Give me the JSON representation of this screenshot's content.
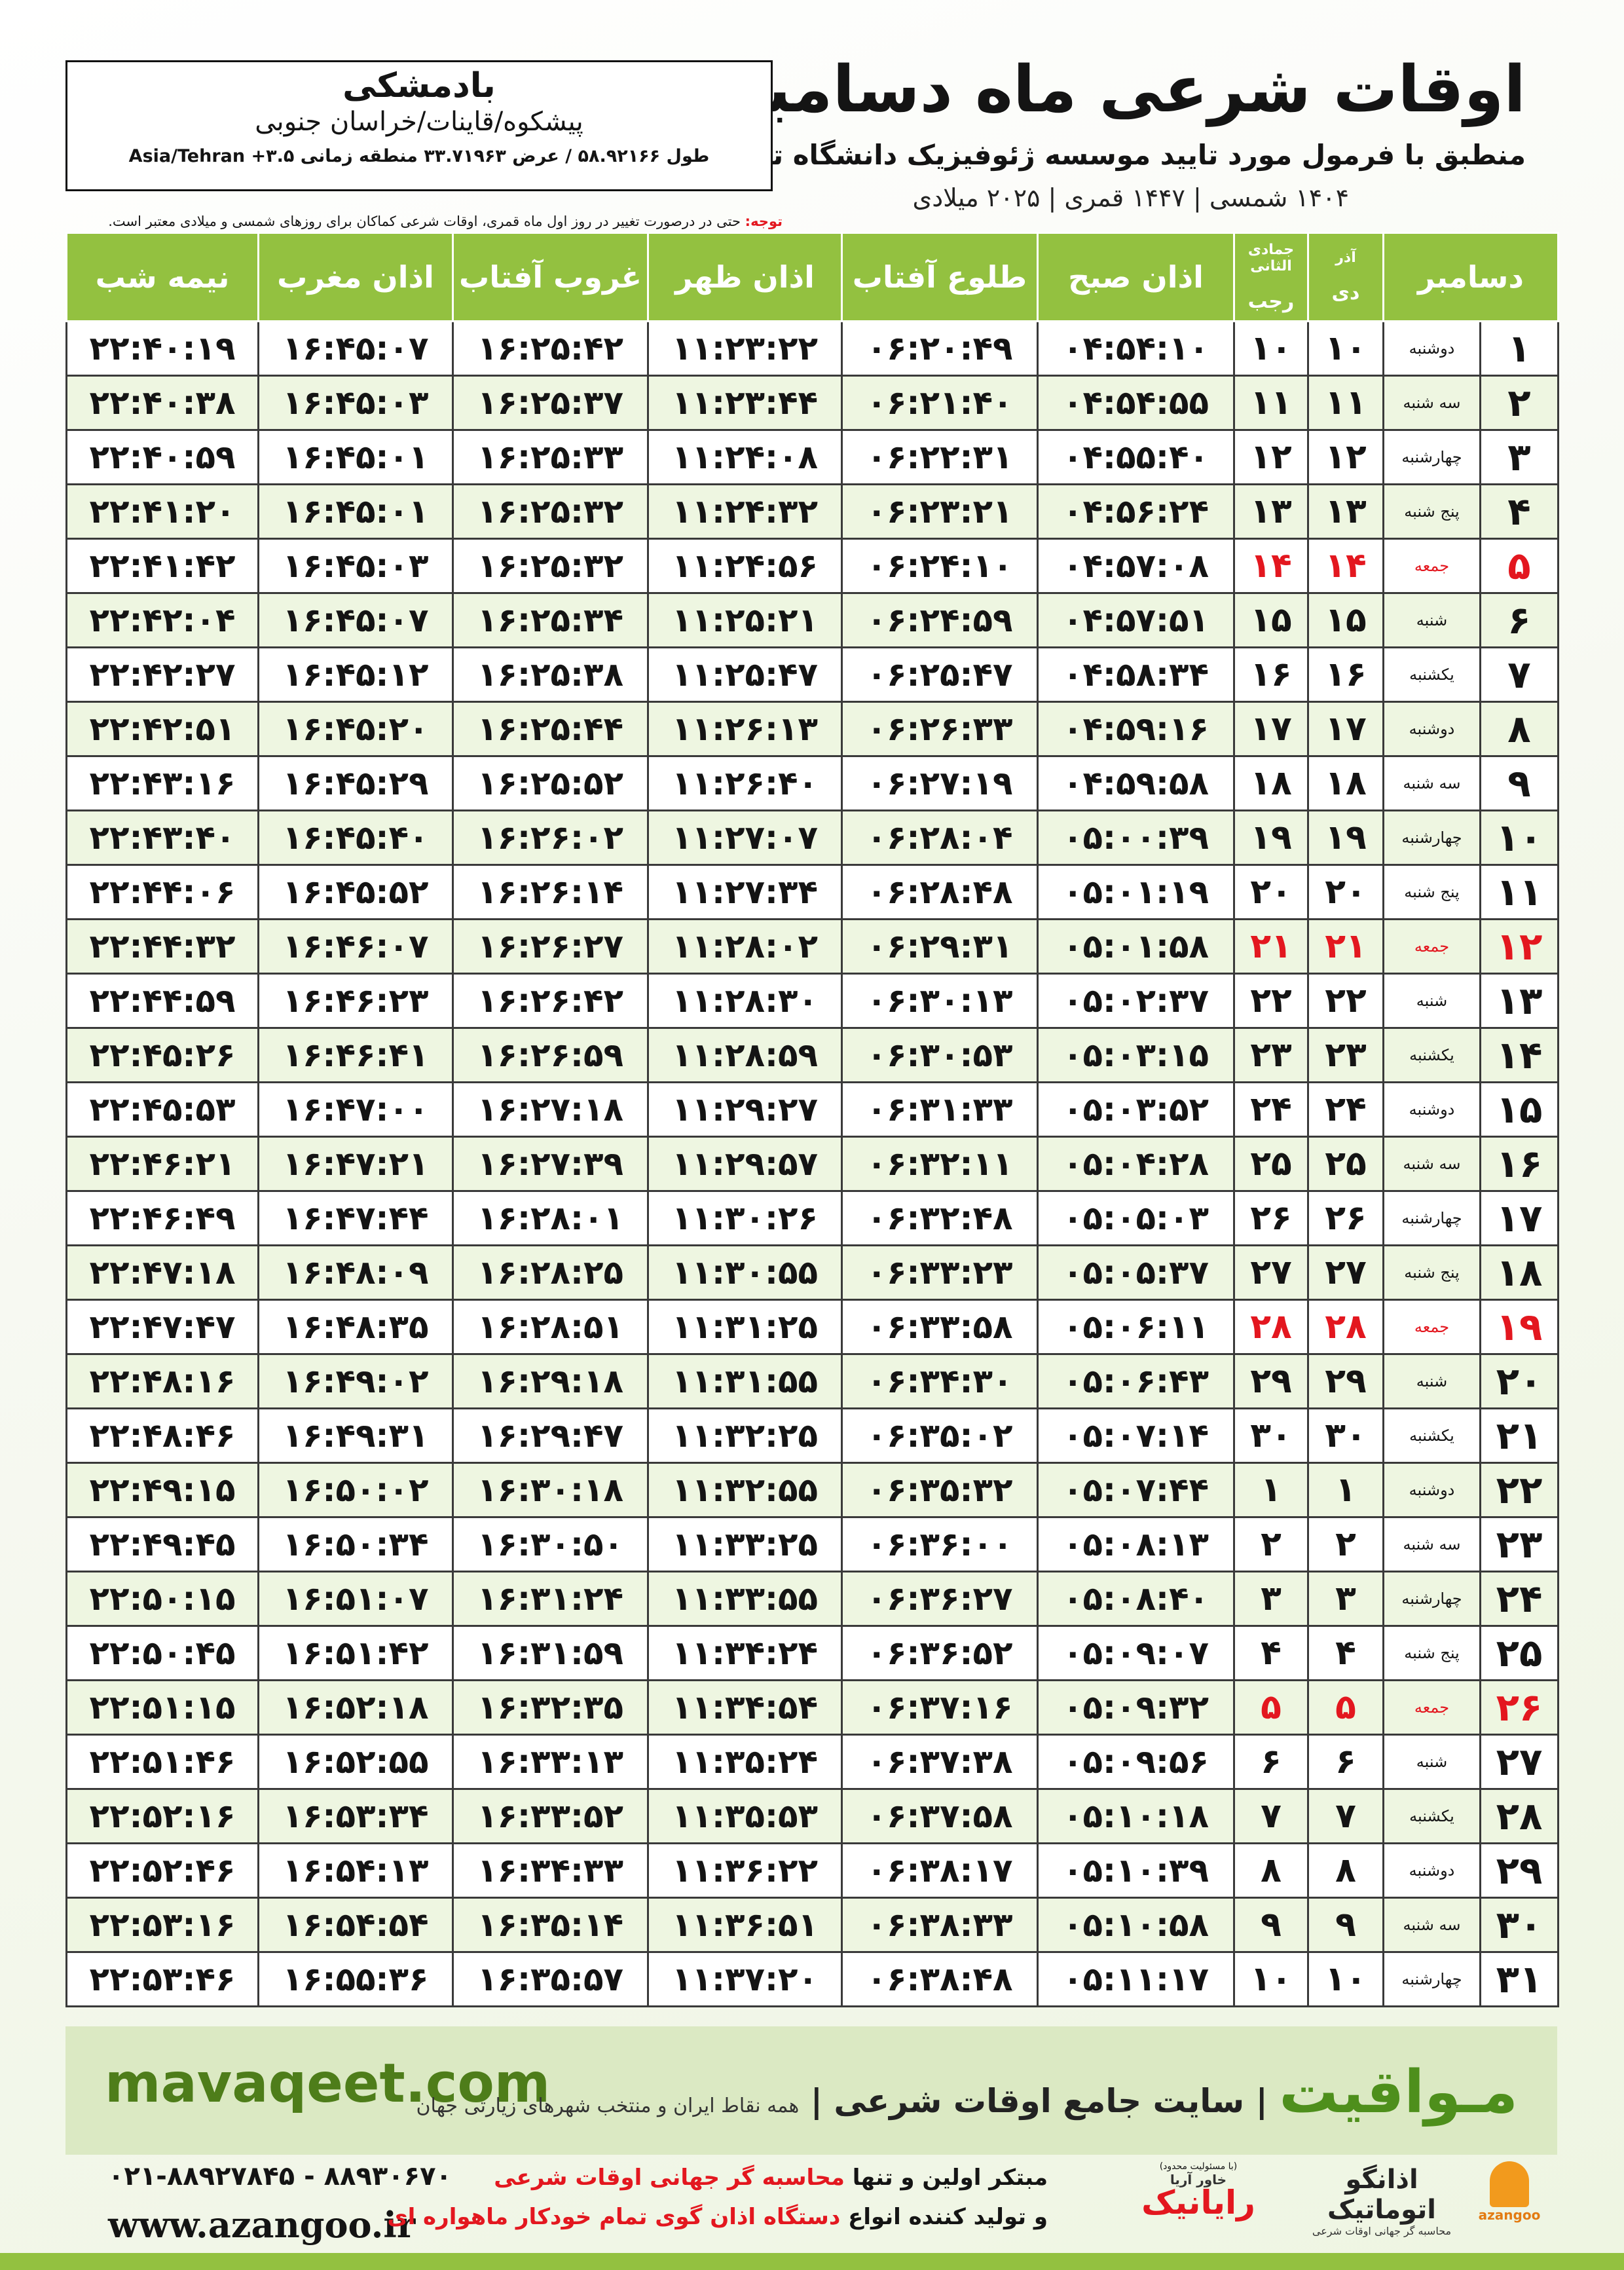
{
  "header": {
    "title": "اوقات شرعی ماه دسامبر",
    "subtitle": "منطبق با فرمول مورد تایید موسسه ژئوفیزیک دانشگاه تهران",
    "date_line": "۱۴۰۴ شمسی | ۱۴۴۷ قمری | ۲۰۲۵ میلادی"
  },
  "location": {
    "name": "بادمشکی",
    "region": "پیشکوه/قاینات/خراسان جنوبی",
    "coords": "طول ۵۸.۹۲۱۶۶ / عرض ۳۳.۷۱۹۶۳ منطقه زمانی ۳.۵+ Asia/Tehran"
  },
  "note": {
    "label": "توجه:",
    "text": "حتی در درصورت تغییر در روز اول ماه قمری، اوقات شرعی کماکان برای روزهای شمسی و میلادی معتبر است."
  },
  "table": {
    "headers": {
      "month": "دسامبر",
      "persian_top": "آذر",
      "persian": "دی",
      "hijri_top": "جمادی الثانی",
      "hijri": "رجب",
      "times": [
        "اذان صبح",
        "طلوع آفتاب",
        "اذان ظهر",
        "غروب آفتاب",
        "اذان مغرب",
        "نیمه شب"
      ]
    },
    "rows": [
      {
        "cells": [
          "۱",
          "دوشنبه",
          "۱۰",
          "۱۰",
          "۰۴:۵۴:۱۰",
          "۰۶:۲۰:۴۹",
          "۱۱:۲۳:۲۲",
          "۱۶:۲۵:۴۲",
          "۱۶:۴۵:۰۷",
          "۲۲:۴۰:۱۹"
        ]
      },
      {
        "cells": [
          "۲",
          "سه شنبه",
          "۱۱",
          "۱۱",
          "۰۴:۵۴:۵۵",
          "۰۶:۲۱:۴۰",
          "۱۱:۲۳:۴۴",
          "۱۶:۲۵:۳۷",
          "۱۶:۴۵:۰۳",
          "۲۲:۴۰:۳۸"
        ]
      },
      {
        "cells": [
          "۳",
          "چهارشنبه",
          "۱۲",
          "۱۲",
          "۰۴:۵۵:۴۰",
          "۰۶:۲۲:۳۱",
          "۱۱:۲۴:۰۸",
          "۱۶:۲۵:۳۳",
          "۱۶:۴۵:۰۱",
          "۲۲:۴۰:۵۹"
        ]
      },
      {
        "cells": [
          "۴",
          "پنج شنبه",
          "۱۳",
          "۱۳",
          "۰۴:۵۶:۲۴",
          "۰۶:۲۳:۲۱",
          "۱۱:۲۴:۳۲",
          "۱۶:۲۵:۳۲",
          "۱۶:۴۵:۰۱",
          "۲۲:۴۱:۲۰"
        ]
      },
      {
        "cells": [
          "۵",
          "جمعه",
          "۱۴",
          "۱۴",
          "۰۴:۵۷:۰۸",
          "۰۶:۲۴:۱۰",
          "۱۱:۲۴:۵۶",
          "۱۶:۲۵:۳۲",
          "۱۶:۴۵:۰۳",
          "۲۲:۴۱:۴۲"
        ],
        "color": "#e3171f"
      },
      {
        "cells": [
          "۶",
          "شنبه",
          "۱۵",
          "۱۵",
          "۰۴:۵۷:۵۱",
          "۰۶:۲۴:۵۹",
          "۱۱:۲۵:۲۱",
          "۱۶:۲۵:۳۴",
          "۱۶:۴۵:۰۷",
          "۲۲:۴۲:۰۴"
        ]
      },
      {
        "cells": [
          "۷",
          "یکشنبه",
          "۱۶",
          "۱۶",
          "۰۴:۵۸:۳۴",
          "۰۶:۲۵:۴۷",
          "۱۱:۲۵:۴۷",
          "۱۶:۲۵:۳۸",
          "۱۶:۴۵:۱۲",
          "۲۲:۴۲:۲۷"
        ]
      },
      {
        "cells": [
          "۸",
          "دوشنبه",
          "۱۷",
          "۱۷",
          "۰۴:۵۹:۱۶",
          "۰۶:۲۶:۳۳",
          "۱۱:۲۶:۱۳",
          "۱۶:۲۵:۴۴",
          "۱۶:۴۵:۲۰",
          "۲۲:۴۲:۵۱"
        ]
      },
      {
        "cells": [
          "۹",
          "سه شنبه",
          "۱۸",
          "۱۸",
          "۰۴:۵۹:۵۸",
          "۰۶:۲۷:۱۹",
          "۱۱:۲۶:۴۰",
          "۱۶:۲۵:۵۲",
          "۱۶:۴۵:۲۹",
          "۲۲:۴۳:۱۶"
        ]
      },
      {
        "cells": [
          "۱۰",
          "چهارشنبه",
          "۱۹",
          "۱۹",
          "۰۵:۰۰:۳۹",
          "۰۶:۲۸:۰۴",
          "۱۱:۲۷:۰۷",
          "۱۶:۲۶:۰۲",
          "۱۶:۴۵:۴۰",
          "۲۲:۴۳:۴۰"
        ]
      },
      {
        "cells": [
          "۱۱",
          "پنج شنبه",
          "۲۰",
          "۲۰",
          "۰۵:۰۱:۱۹",
          "۰۶:۲۸:۴۸",
          "۱۱:۲۷:۳۴",
          "۱۶:۲۶:۱۴",
          "۱۶:۴۵:۵۲",
          "۲۲:۴۴:۰۶"
        ]
      },
      {
        "cells": [
          "۱۲",
          "جمعه",
          "۲۱",
          "۲۱",
          "۰۵:۰۱:۵۸",
          "۰۶:۲۹:۳۱",
          "۱۱:۲۸:۰۲",
          "۱۶:۲۶:۲۷",
          "۱۶:۴۶:۰۷",
          "۲۲:۴۴:۳۲"
        ],
        "color": "#e3171f"
      },
      {
        "cells": [
          "۱۳",
          "شنبه",
          "۲۲",
          "۲۲",
          "۰۵:۰۲:۳۷",
          "۰۶:۳۰:۱۳",
          "۱۱:۲۸:۳۰",
          "۱۶:۲۶:۴۲",
          "۱۶:۴۶:۲۳",
          "۲۲:۴۴:۵۹"
        ]
      },
      {
        "cells": [
          "۱۴",
          "یکشنبه",
          "۲۳",
          "۲۳",
          "۰۵:۰۳:۱۵",
          "۰۶:۳۰:۵۳",
          "۱۱:۲۸:۵۹",
          "۱۶:۲۶:۵۹",
          "۱۶:۴۶:۴۱",
          "۲۲:۴۵:۲۶"
        ]
      },
      {
        "cells": [
          "۱۵",
          "دوشنبه",
          "۲۴",
          "۲۴",
          "۰۵:۰۳:۵۲",
          "۰۶:۳۱:۳۳",
          "۱۱:۲۹:۲۷",
          "۱۶:۲۷:۱۸",
          "۱۶:۴۷:۰۰",
          "۲۲:۴۵:۵۳"
        ]
      },
      {
        "cells": [
          "۱۶",
          "سه شنبه",
          "۲۵",
          "۲۵",
          "۰۵:۰۴:۲۸",
          "۰۶:۳۲:۱۱",
          "۱۱:۲۹:۵۷",
          "۱۶:۲۷:۳۹",
          "۱۶:۴۷:۲۱",
          "۲۲:۴۶:۲۱"
        ]
      },
      {
        "cells": [
          "۱۷",
          "چهارشنبه",
          "۲۶",
          "۲۶",
          "۰۵:۰۵:۰۳",
          "۰۶:۳۲:۴۸",
          "۱۱:۳۰:۲۶",
          "۱۶:۲۸:۰۱",
          "۱۶:۴۷:۴۴",
          "۲۲:۴۶:۴۹"
        ]
      },
      {
        "cells": [
          "۱۸",
          "پنج شنبه",
          "۲۷",
          "۲۷",
          "۰۵:۰۵:۳۷",
          "۰۶:۳۳:۲۳",
          "۱۱:۳۰:۵۵",
          "۱۶:۲۸:۲۵",
          "۱۶:۴۸:۰۹",
          "۲۲:۴۷:۱۸"
        ]
      },
      {
        "cells": [
          "۱۹",
          "جمعه",
          "۲۸",
          "۲۸",
          "۰۵:۰۶:۱۱",
          "۰۶:۳۳:۵۸",
          "۱۱:۳۱:۲۵",
          "۱۶:۲۸:۵۱",
          "۱۶:۴۸:۳۵",
          "۲۲:۴۷:۴۷"
        ],
        "color": "#e3171f"
      },
      {
        "cells": [
          "۲۰",
          "شنبه",
          "۲۹",
          "۲۹",
          "۰۵:۰۶:۴۳",
          "۰۶:۳۴:۳۰",
          "۱۱:۳۱:۵۵",
          "۱۶:۲۹:۱۸",
          "۱۶:۴۹:۰۲",
          "۲۲:۴۸:۱۶"
        ]
      },
      {
        "cells": [
          "۲۱",
          "یکشنبه",
          "۳۰",
          "۳۰",
          "۰۵:۰۷:۱۴",
          "۰۶:۳۵:۰۲",
          "۱۱:۳۲:۲۵",
          "۱۶:۲۹:۴۷",
          "۱۶:۴۹:۳۱",
          "۲۲:۴۸:۴۶"
        ]
      },
      {
        "cells": [
          "۲۲",
          "دوشنبه",
          "۱",
          "۱",
          "۰۵:۰۷:۴۴",
          "۰۶:۳۵:۳۲",
          "۱۱:۳۲:۵۵",
          "۱۶:۳۰:۱۸",
          "۱۶:۵۰:۰۲",
          "۲۲:۴۹:۱۵"
        ]
      },
      {
        "cells": [
          "۲۳",
          "سه شنبه",
          "۲",
          "۲",
          "۰۵:۰۸:۱۳",
          "۰۶:۳۶:۰۰",
          "۱۱:۳۳:۲۵",
          "۱۶:۳۰:۵۰",
          "۱۶:۵۰:۳۴",
          "۲۲:۴۹:۴۵"
        ]
      },
      {
        "cells": [
          "۲۴",
          "چهارشنبه",
          "۳",
          "۳",
          "۰۵:۰۸:۴۰",
          "۰۶:۳۶:۲۷",
          "۱۱:۳۳:۵۵",
          "۱۶:۳۱:۲۴",
          "۱۶:۵۱:۰۷",
          "۲۲:۵۰:۱۵"
        ]
      },
      {
        "cells": [
          "۲۵",
          "پنج شنبه",
          "۴",
          "۴",
          "۰۵:۰۹:۰۷",
          "۰۶:۳۶:۵۲",
          "۱۱:۳۴:۲۴",
          "۱۶:۳۱:۵۹",
          "۱۶:۵۱:۴۲",
          "۲۲:۵۰:۴۵"
        ]
      },
      {
        "cells": [
          "۲۶",
          "جمعه",
          "۵",
          "۵",
          "۰۵:۰۹:۳۲",
          "۰۶:۳۷:۱۶",
          "۱۱:۳۴:۵۴",
          "۱۶:۳۲:۳۵",
          "۱۶:۵۲:۱۸",
          "۲۲:۵۱:۱۵"
        ],
        "color": "#e3171f"
      },
      {
        "cells": [
          "۲۷",
          "شنبه",
          "۶",
          "۶",
          "۰۵:۰۹:۵۶",
          "۰۶:۳۷:۳۸",
          "۱۱:۳۵:۲۴",
          "۱۶:۳۳:۱۳",
          "۱۶:۵۲:۵۵",
          "۲۲:۵۱:۴۶"
        ]
      },
      {
        "cells": [
          "۲۸",
          "یکشنبه",
          "۷",
          "۷",
          "۰۵:۱۰:۱۸",
          "۰۶:۳۷:۵۸",
          "۱۱:۳۵:۵۳",
          "۱۶:۳۳:۵۲",
          "۱۶:۵۳:۳۴",
          "۲۲:۵۲:۱۶"
        ]
      },
      {
        "cells": [
          "۲۹",
          "دوشنبه",
          "۸",
          "۸",
          "۰۵:۱۰:۳۹",
          "۰۶:۳۸:۱۷",
          "۱۱:۳۶:۲۲",
          "۱۶:۳۴:۳۳",
          "۱۶:۵۴:۱۳",
          "۲۲:۵۲:۴۶"
        ]
      },
      {
        "cells": [
          "۳۰",
          "سه شنبه",
          "۹",
          "۹",
          "۰۵:۱۰:۵۸",
          "۰۶:۳۸:۳۳",
          "۱۱:۳۶:۵۱",
          "۱۶:۳۵:۱۴",
          "۱۶:۵۴:۵۴",
          "۲۲:۵۳:۱۶"
        ]
      },
      {
        "cells": [
          "۳۱",
          "چهارشنبه",
          "۱۰",
          "۱۰",
          "۰۵:۱۱:۱۷",
          "۰۶:۳۸:۴۸",
          "۱۱:۳۷:۲۰",
          "۱۶:۳۵:۵۷",
          "۱۶:۵۵:۳۶",
          "۲۲:۵۳:۴۶"
        ]
      }
    ]
  },
  "banner": {
    "site": "mavaqeet.com",
    "brand": "مـواقیت",
    "tagline": "سایت جامع اوقات شرعی",
    "subtag": "همه نقاط ایران و منتخب شهرهای زیارتی جهان"
  },
  "footer": {
    "phones": "۰۲۱-۸۸۹۲۷۸۴۵ - ۸۸۹۳۰۶۷۰",
    "website": "www.azangoo.ir",
    "line1": [
      "مبتکر اولین و تنها",
      "محاسبه گر جهانی اوقات شرعی"
    ],
    "line2": [
      "و تولید کننده انواع",
      "دستگاه اذان گوی تمام خودکار ماهواره ای"
    ],
    "logo1": {
      "note": "(با مسئولیت محدود)",
      "small": "خاور آریا",
      "name": "رایانیک"
    },
    "logo2": {
      "name": "اذانگو اتوماتیک",
      "small": "محاسبه گر جهانی اوقات شرعی",
      "latin": "azangoo"
    }
  }
}
